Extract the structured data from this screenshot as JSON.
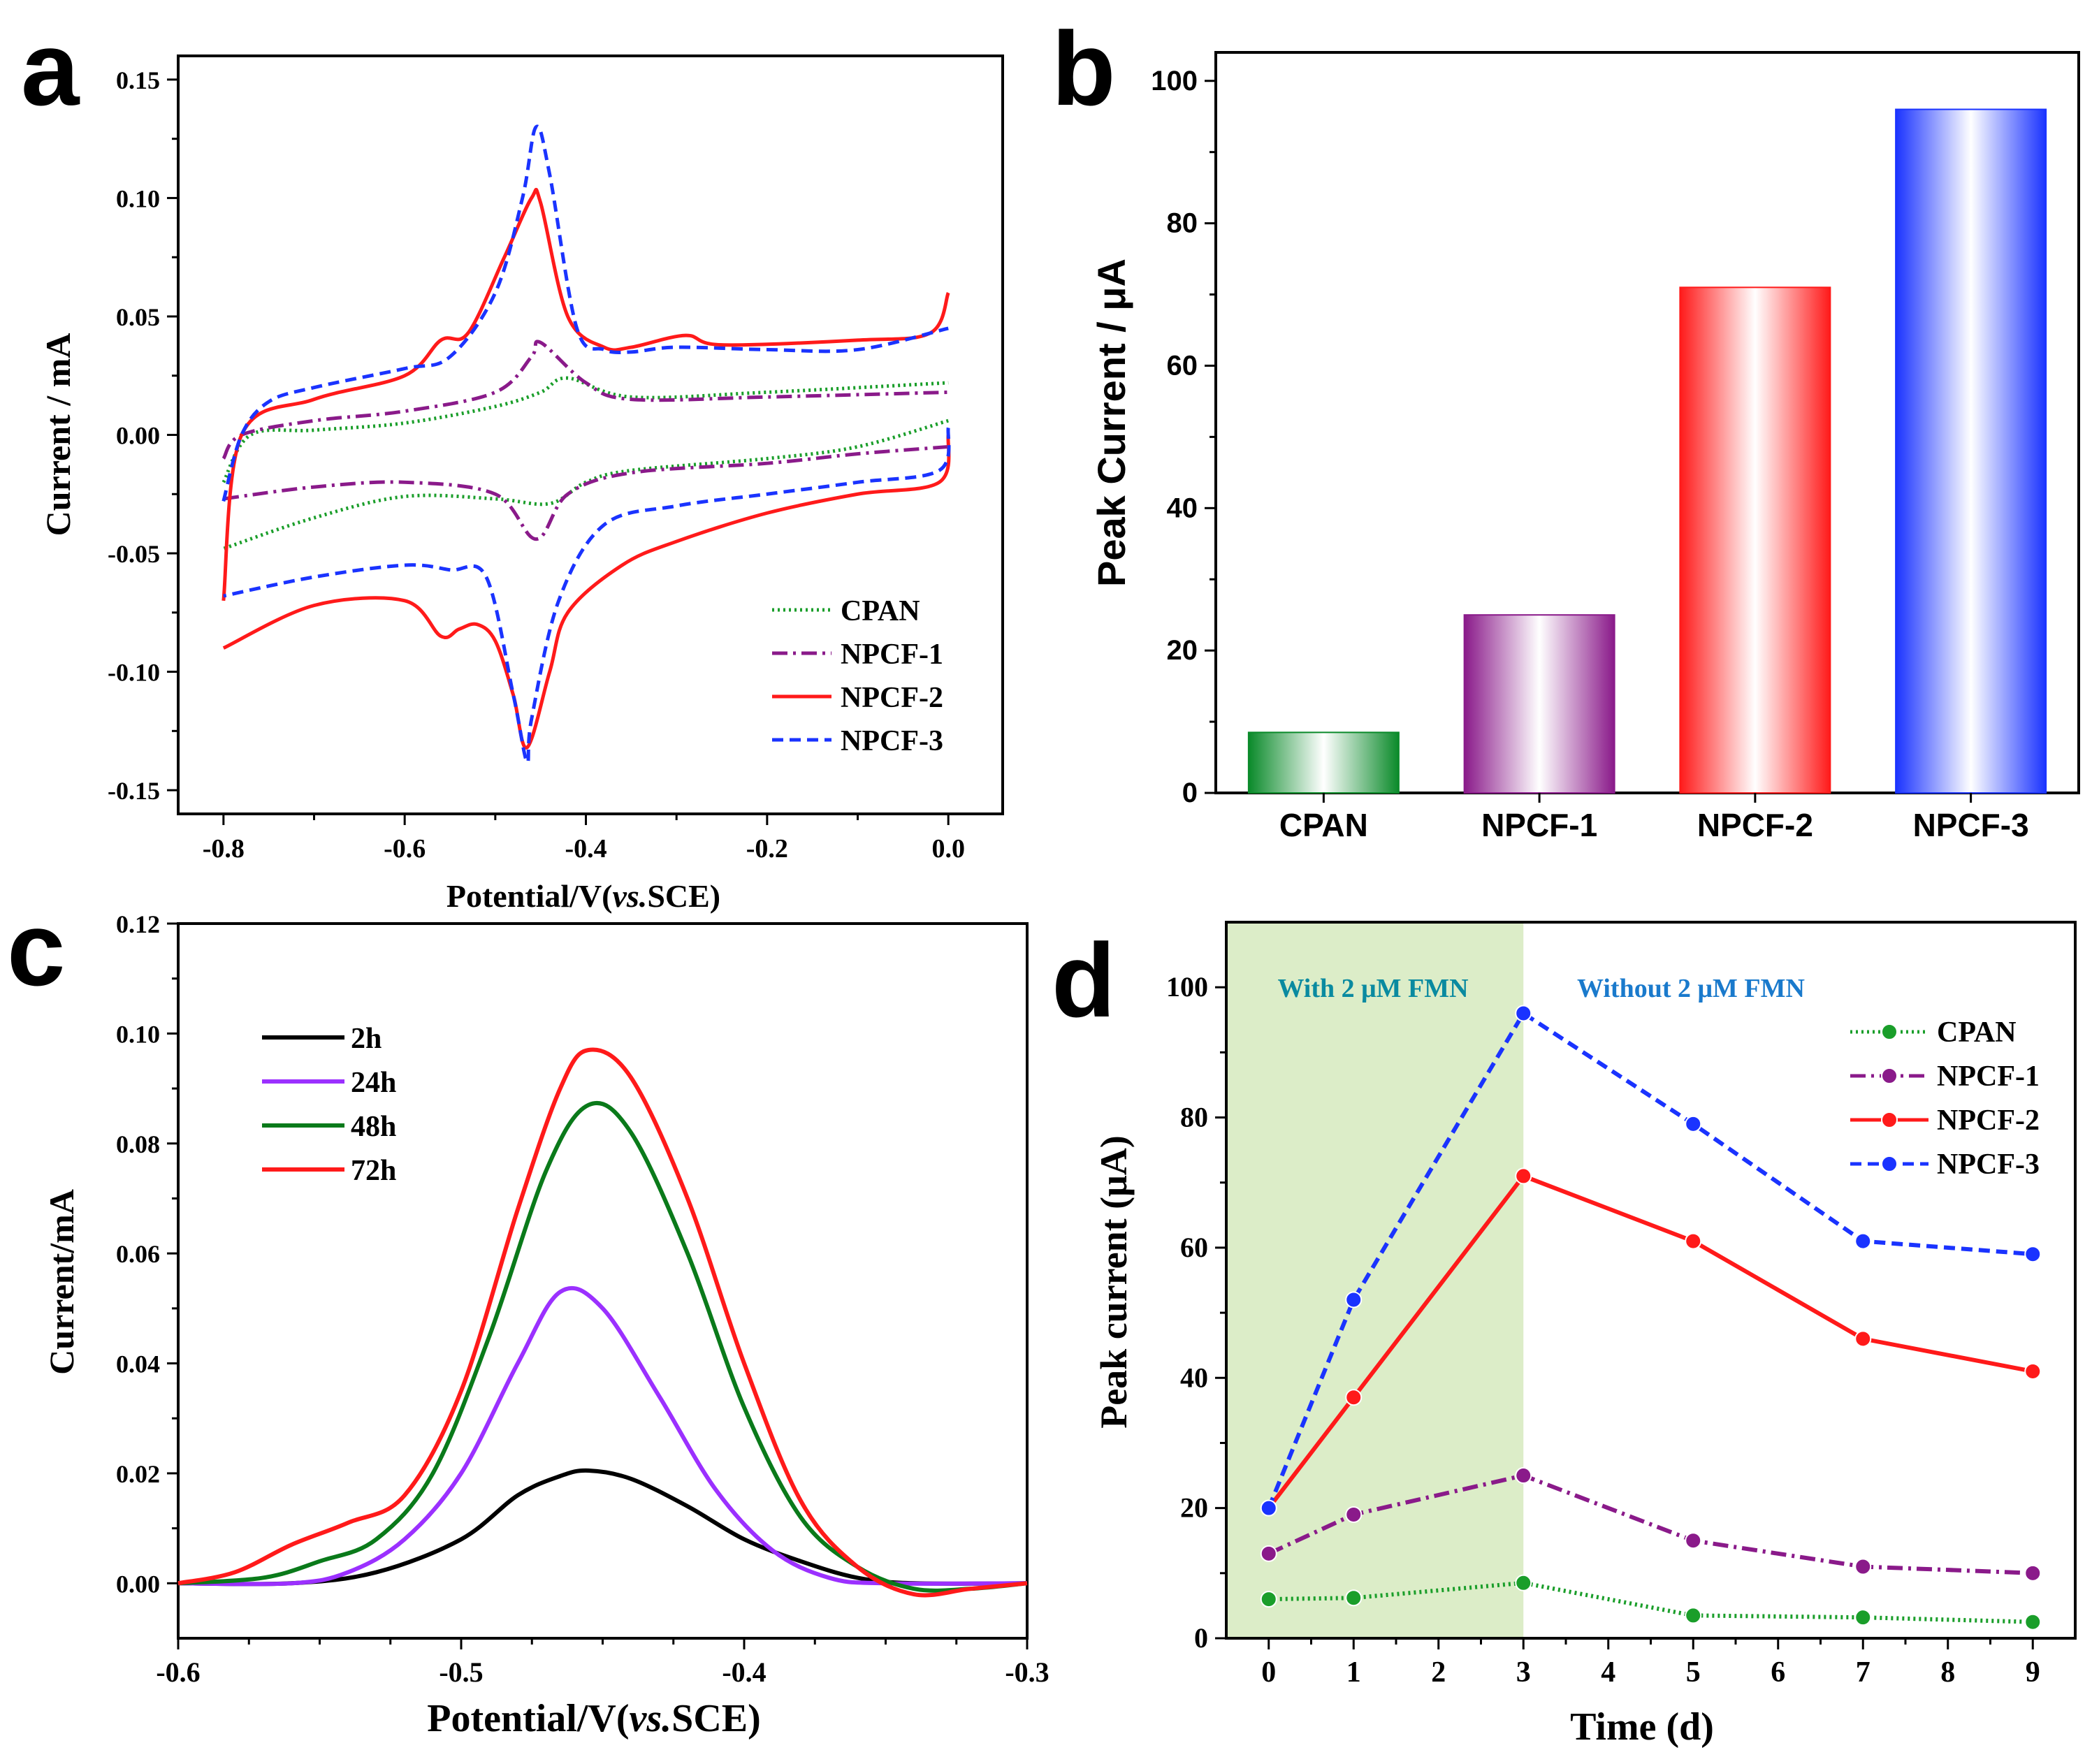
{
  "figure": {
    "panel_labels": [
      "a",
      "b",
      "c",
      "d"
    ]
  },
  "chart_data": [
    {
      "panel": "a",
      "type": "line",
      "subtype": "cyclic-voltammogram",
      "xlabel": "Potential/V(vs.SCE)",
      "xlabel_prefix": "Potential/V(",
      "xlabel_italic": "vs.",
      "xlabel_suffix": "SCE)",
      "ylabel": "Current / mA",
      "xlim": [
        -0.85,
        0.06
      ],
      "ylim": [
        -0.16,
        0.16
      ],
      "xticks": [
        -0.8,
        -0.6,
        -0.4,
        -0.2,
        0.0
      ],
      "xtick_labels": [
        "-0.8",
        "-0.6",
        "-0.4",
        "-0.2",
        "0.0"
      ],
      "yticks": [
        -0.15,
        -0.1,
        -0.05,
        0.0,
        0.05,
        0.1,
        0.15
      ],
      "ytick_labels": [
        "-0.15",
        "-0.10",
        "-0.05",
        "0.00",
        "0.05",
        "0.10",
        "0.15"
      ],
      "legend_position": "bottom-right",
      "series": [
        {
          "name": "CPAN",
          "color": "#1a9e2a",
          "dash": "dotted",
          "x_up": [
            -0.8,
            -0.77,
            -0.7,
            -0.6,
            -0.5,
            -0.45,
            -0.42,
            -0.35,
            -0.2,
            0.0
          ],
          "y_up": [
            -0.02,
            0.0,
            0.002,
            0.005,
            0.012,
            0.018,
            0.024,
            0.016,
            0.018,
            0.022
          ],
          "x_down": [
            0.0,
            -0.1,
            -0.2,
            -0.35,
            -0.4,
            -0.44,
            -0.5,
            -0.6,
            -0.7,
            -0.8
          ],
          "y_down": [
            0.006,
            -0.005,
            -0.01,
            -0.015,
            -0.02,
            -0.029,
            -0.027,
            -0.026,
            -0.035,
            -0.048
          ]
        },
        {
          "name": "NPCF-1",
          "color": "#8a1a8a",
          "dash": "dashdot",
          "x_up": [
            -0.8,
            -0.78,
            -0.7,
            -0.6,
            -0.5,
            -0.46,
            -0.45,
            -0.4,
            -0.35,
            -0.2,
            0.0
          ],
          "y_up": [
            -0.01,
            0.0,
            0.006,
            0.01,
            0.018,
            0.033,
            0.039,
            0.022,
            0.015,
            0.016,
            0.018
          ],
          "x_down": [
            0.0,
            -0.1,
            -0.2,
            -0.35,
            -0.42,
            -0.455,
            -0.5,
            -0.6,
            -0.7,
            -0.8
          ],
          "y_down": [
            -0.005,
            -0.008,
            -0.012,
            -0.016,
            -0.025,
            -0.044,
            -0.025,
            -0.02,
            -0.022,
            -0.027
          ]
        },
        {
          "name": "NPCF-2",
          "color": "#ff1a1a",
          "dash": "solid",
          "x_up": [
            -0.8,
            -0.78,
            -0.7,
            -0.6,
            -0.56,
            -0.53,
            -0.49,
            -0.46,
            -0.45,
            -0.42,
            -0.38,
            -0.35,
            -0.29,
            -0.25,
            -0.1,
            -0.02,
            0.0
          ],
          "y_up": [
            -0.07,
            0.0,
            0.015,
            0.025,
            0.04,
            0.043,
            0.075,
            0.1,
            0.098,
            0.05,
            0.037,
            0.037,
            0.042,
            0.038,
            0.04,
            0.043,
            0.06
          ],
          "x_down": [
            0.0,
            -0.01,
            -0.1,
            -0.2,
            -0.3,
            -0.36,
            -0.42,
            -0.44,
            -0.465,
            -0.48,
            -0.5,
            -0.52,
            -0.54,
            -0.56,
            -0.6,
            -0.7,
            -0.8
          ],
          "y_down": [
            0.0,
            -0.02,
            -0.025,
            -0.033,
            -0.045,
            -0.055,
            -0.075,
            -0.1,
            -0.132,
            -0.11,
            -0.087,
            -0.08,
            -0.082,
            -0.085,
            -0.07,
            -0.072,
            -0.09
          ]
        },
        {
          "name": "NPCF-3",
          "color": "#1a33ff",
          "dash": "dashed",
          "x_up": [
            -0.8,
            -0.78,
            -0.75,
            -0.7,
            -0.6,
            -0.55,
            -0.5,
            -0.47,
            -0.455,
            -0.44,
            -0.41,
            -0.38,
            -0.35,
            -0.3,
            -0.2,
            -0.1,
            0.0
          ],
          "y_up": [
            -0.028,
            0.0,
            0.014,
            0.02,
            0.028,
            0.033,
            0.06,
            0.1,
            0.13,
            0.11,
            0.045,
            0.036,
            0.035,
            0.037,
            0.036,
            0.036,
            0.045
          ],
          "x_down": [
            0.0,
            -0.01,
            -0.1,
            -0.2,
            -0.3,
            -0.38,
            -0.43,
            -0.46,
            -0.465,
            -0.48,
            -0.51,
            -0.55,
            -0.6,
            -0.7,
            -0.8
          ],
          "y_down": [
            0.003,
            -0.015,
            -0.02,
            -0.025,
            -0.03,
            -0.038,
            -0.07,
            -0.12,
            -0.138,
            -0.11,
            -0.06,
            -0.057,
            -0.055,
            -0.06,
            -0.068
          ]
        }
      ]
    },
    {
      "panel": "b",
      "type": "bar",
      "ylabel": "Peak Current / μA",
      "categories": [
        "CPAN",
        "NPCF-1",
        "NPCF-2",
        "NPCF-3"
      ],
      "values": [
        8.5,
        25,
        71,
        96
      ],
      "colors": [
        "#0a8a2a",
        "#8a1a8a",
        "#ff1a1a",
        "#1a33ff"
      ],
      "ylim": [
        0,
        104
      ],
      "yticks": [
        0,
        20,
        40,
        60,
        80,
        100
      ],
      "ytick_labels": [
        "0",
        "20",
        "40",
        "60",
        "80",
        "100"
      ]
    },
    {
      "panel": "c",
      "type": "line",
      "subtype": "differential-pulse-voltammogram",
      "xlabel": "Potential/V(vs.SCE)",
      "xlabel_prefix": "Potential/V(",
      "xlabel_italic": "vs.",
      "xlabel_suffix": "SCE)",
      "ylabel": "Current/mA",
      "xlim": [
        -0.6,
        -0.3
      ],
      "ylim": [
        -0.01,
        0.12
      ],
      "xticks": [
        -0.6,
        -0.5,
        -0.4,
        -0.3
      ],
      "xtick_labels": [
        "-0.6",
        "-0.5",
        "-0.4",
        "-0.3"
      ],
      "yticks": [
        0.0,
        0.02,
        0.04,
        0.06,
        0.08,
        0.1,
        0.12
      ],
      "ytick_labels": [
        "0.00",
        "0.02",
        "0.04",
        "0.06",
        "0.08",
        "0.10",
        "0.12"
      ],
      "legend_position": "top-left",
      "series": [
        {
          "name": "2h",
          "color": "#000000",
          "x": [
            -0.6,
            -0.56,
            -0.53,
            -0.5,
            -0.48,
            -0.465,
            -0.455,
            -0.44,
            -0.42,
            -0.4,
            -0.38,
            -0.36,
            -0.34,
            -0.3
          ],
          "y": [
            0.0,
            0.0,
            0.002,
            0.008,
            0.016,
            0.0195,
            0.0205,
            0.019,
            0.014,
            0.008,
            0.004,
            0.001,
            0.0,
            0.0
          ]
        },
        {
          "name": "24h",
          "color": "#9b30ff",
          "x": [
            -0.6,
            -0.56,
            -0.54,
            -0.52,
            -0.5,
            -0.48,
            -0.465,
            -0.45,
            -0.43,
            -0.41,
            -0.39,
            -0.37,
            -0.35,
            -0.3
          ],
          "y": [
            0.0,
            0.0,
            0.002,
            0.008,
            0.02,
            0.04,
            0.053,
            0.05,
            0.034,
            0.017,
            0.006,
            0.001,
            0.0,
            0.0
          ]
        },
        {
          "name": "48h",
          "color": "#0a7a1a",
          "x": [
            -0.6,
            -0.57,
            -0.55,
            -0.53,
            -0.51,
            -0.49,
            -0.47,
            -0.455,
            -0.44,
            -0.42,
            -0.4,
            -0.38,
            -0.36,
            -0.34,
            -0.32,
            -0.3
          ],
          "y": [
            0.0,
            0.001,
            0.004,
            0.008,
            0.02,
            0.045,
            0.075,
            0.087,
            0.082,
            0.06,
            0.032,
            0.012,
            0.003,
            -0.001,
            -0.001,
            0.0
          ]
        },
        {
          "name": "72h",
          "color": "#ff1a1a",
          "x": [
            -0.6,
            -0.58,
            -0.56,
            -0.54,
            -0.52,
            -0.5,
            -0.48,
            -0.465,
            -0.455,
            -0.44,
            -0.42,
            -0.4,
            -0.38,
            -0.36,
            -0.34,
            -0.32,
            -0.3
          ],
          "y": [
            0.0,
            0.002,
            0.007,
            0.011,
            0.016,
            0.035,
            0.068,
            0.09,
            0.097,
            0.092,
            0.07,
            0.04,
            0.015,
            0.003,
            -0.002,
            -0.001,
            0.0
          ]
        }
      ]
    },
    {
      "panel": "d",
      "type": "line",
      "xlabel": "Time (d)",
      "ylabel": "Peak current (μA)",
      "xlim": [
        -0.5,
        9.5
      ],
      "ylim": [
        0,
        110
      ],
      "xticks": [
        0,
        1,
        2,
        3,
        4,
        5,
        6,
        7,
        8,
        9
      ],
      "xtick_labels": [
        "0",
        "1",
        "2",
        "3",
        "4",
        "5",
        "6",
        "7",
        "8",
        "9"
      ],
      "yticks": [
        0,
        20,
        40,
        60,
        80,
        100
      ],
      "ytick_labels": [
        "0",
        "20",
        "40",
        "60",
        "80",
        "100"
      ],
      "shaded_region": {
        "x_start": -0.5,
        "x_end": 3,
        "color": "#dcedc8"
      },
      "annotations": [
        {
          "text": "With 2 μM FMN",
          "color": "#0a8aa0"
        },
        {
          "text": "Without 2 μM FMN",
          "color": "#1a7acc"
        }
      ],
      "legend_position": "top-right",
      "x": [
        0,
        1,
        3,
        5,
        7,
        9
      ],
      "series": [
        {
          "name": "CPAN",
          "color": "#1a9e2a",
          "dash": "dotted",
          "values": [
            6,
            6.2,
            8.5,
            3.5,
            3.2,
            2.5
          ]
        },
        {
          "name": "NPCF-1",
          "color": "#8a1a8a",
          "dash": "dashdot",
          "values": [
            13,
            19,
            25,
            15,
            11,
            10
          ]
        },
        {
          "name": "NPCF-2",
          "color": "#ff1a1a",
          "dash": "solid",
          "values": [
            20,
            37,
            71,
            61,
            46,
            41
          ]
        },
        {
          "name": "NPCF-3",
          "color": "#1a33ff",
          "dash": "dashed",
          "values": [
            20,
            52,
            96,
            79,
            61,
            59
          ]
        }
      ]
    }
  ]
}
